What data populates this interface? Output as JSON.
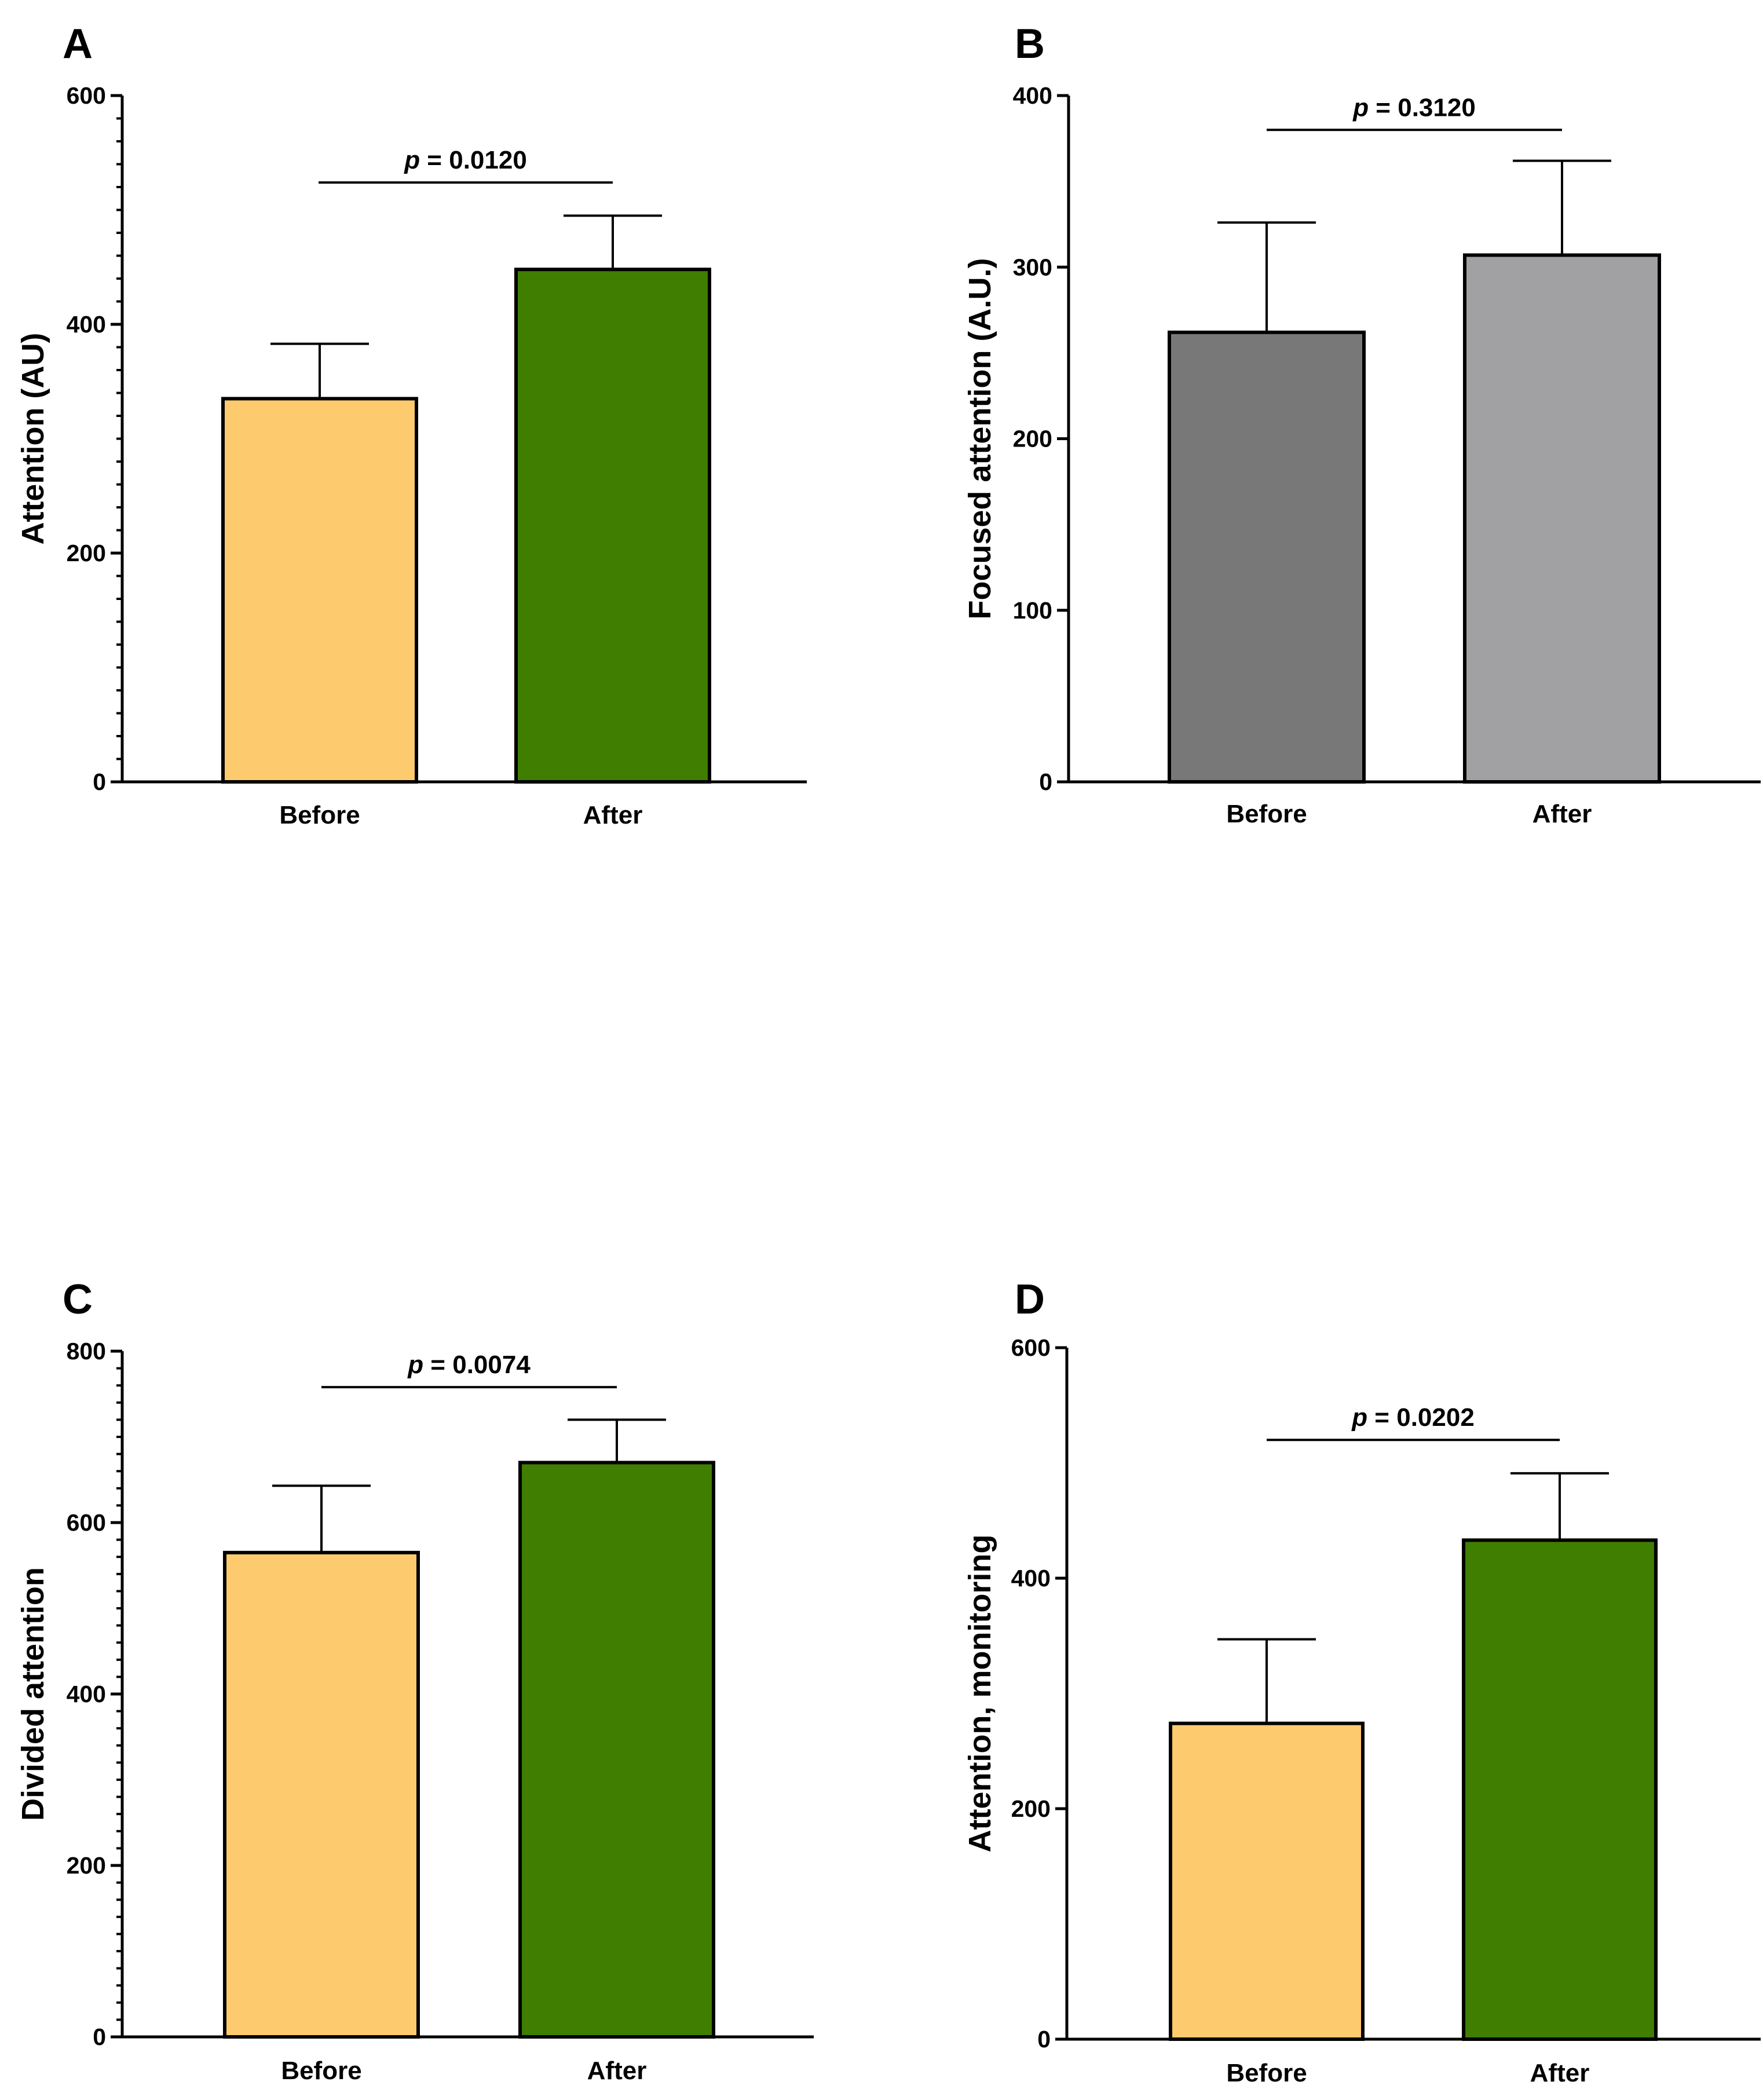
{
  "chart_data": [
    {
      "panel": "A",
      "type": "bar",
      "categories": [
        "Before",
        "After"
      ],
      "values": [
        335,
        448
      ],
      "errors": [
        48,
        47
      ],
      "colors": [
        "#FDCB6E",
        "#3F7E00"
      ],
      "ylabel": "Attention (AU)",
      "ylim": [
        0,
        600
      ],
      "yticks": [
        0,
        200,
        400,
        600
      ],
      "minor_step": 20,
      "annotation": {
        "p_symbol": "p",
        "text": " = 0.0120",
        "level": 524
      }
    },
    {
      "panel": "B",
      "type": "bar",
      "categories": [
        "Before",
        "After"
      ],
      "values": [
        262,
        307
      ],
      "errors": [
        64,
        55
      ],
      "colors": [
        "#787878",
        "#A1A1A4"
      ],
      "ylabel": "Focused attention (A.U.)",
      "ylim": [
        0,
        400
      ],
      "yticks": [
        0,
        100,
        200,
        300,
        400
      ],
      "minor_step": null,
      "annotation": {
        "p_symbol": "p",
        "text": " = 0.3120",
        "level": 380
      }
    },
    {
      "panel": "C",
      "type": "bar",
      "categories": [
        "Before",
        "After"
      ],
      "values": [
        565,
        670
      ],
      "errors": [
        78,
        50
      ],
      "colors": [
        "#FDCB6E",
        "#3F7E00"
      ],
      "ylabel": "Divided attention",
      "ylim": [
        0,
        800
      ],
      "yticks": [
        0,
        200,
        400,
        600,
        800
      ],
      "minor_step": 20,
      "annotation": {
        "p_symbol": "p",
        "text": " = 0.0074",
        "level": 758
      }
    },
    {
      "panel": "D",
      "type": "bar",
      "categories": [
        "Before",
        "After"
      ],
      "values": [
        274,
        433
      ],
      "errors": [
        73,
        58
      ],
      "colors": [
        "#FDCB6E",
        "#3F7E00"
      ],
      "ylabel": "Attention, monitoring",
      "ylim": [
        0,
        600
      ],
      "yticks": [
        0,
        200,
        400,
        600
      ],
      "minor_step": null,
      "annotation": {
        "p_symbol": "p",
        "text": " = 0.0202",
        "level": 520
      }
    }
  ]
}
